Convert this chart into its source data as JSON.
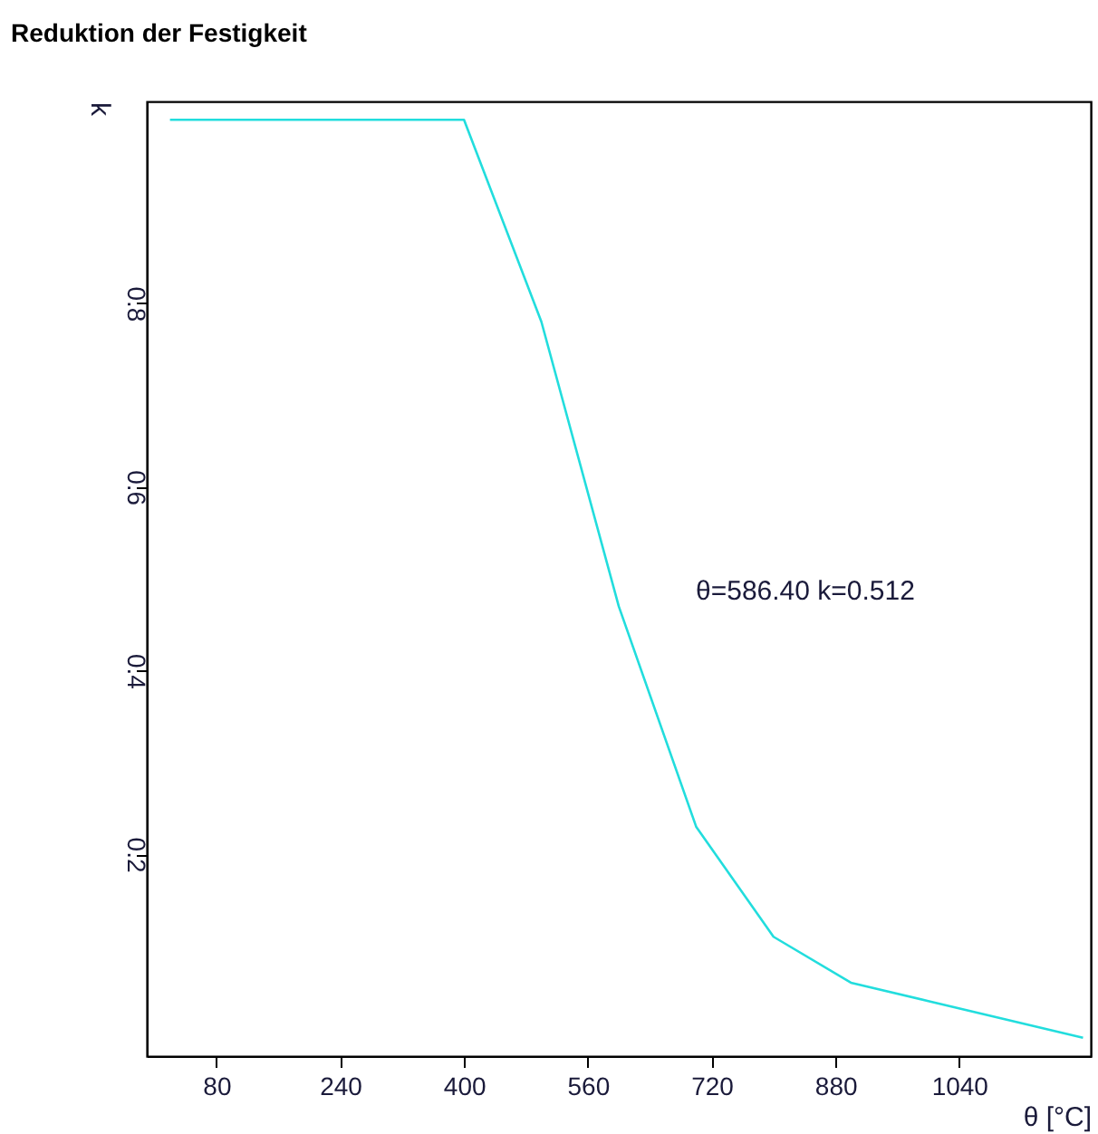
{
  "chart_data": {
    "type": "line",
    "title": "Reduktion der Festigkeit",
    "xlabel": "θ [°C]",
    "ylabel": "k",
    "x": [
      20,
      100,
      200,
      300,
      400,
      500,
      600,
      700,
      800,
      900,
      1000,
      1100,
      1200
    ],
    "series": [
      {
        "color": "#22dddd",
        "values": [
          1,
          1,
          1,
          1,
          1,
          0.78,
          0.47,
          0.23,
          0.11,
          0.06,
          0.04,
          0.02,
          0
        ]
      }
    ],
    "xlim": [
      -10,
      1210
    ],
    "xticks": [
      80,
      240,
      400,
      560,
      720,
      880,
      1040
    ],
    "ylim": [
      -0.02,
      1.02
    ],
    "yticks": [
      0.2,
      0.4,
      0.6,
      0.8
    ],
    "grid": false,
    "marker": "none",
    "line_style": "solid",
    "annotations": [
      "θ=586.40 k=0.512"
    ]
  }
}
